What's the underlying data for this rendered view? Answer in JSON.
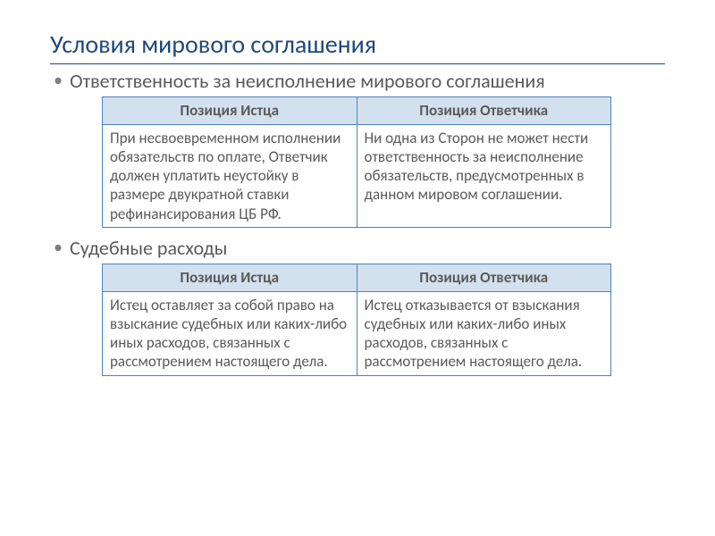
{
  "colors": {
    "title": "#1f497d",
    "title_rule": "#1f497d",
    "body_text": "#5a5a5a",
    "bullet": "#7f7f7f",
    "table_border": "#4f81bd",
    "header_bg": "#d3e0ee",
    "cell_bg": "#ffffff"
  },
  "title": "Условия мирового соглашения",
  "sections": [
    {
      "bullet": "Ответственность за неисполнение мирового соглашения",
      "table": {
        "headers": [
          "Позиция Истца",
          "Позиция Ответчика"
        ],
        "row": [
          "При несвоевременном исполнении обязательств по оплате, Ответчик должен уплатить неустойку в размере двукратной ставки рефинансирования ЦБ РФ.",
          "Ни одна из Сторон не может нести ответственность за неисполнение обязательств, предусмотренных в данном мировом соглашении."
        ]
      }
    },
    {
      "bullet": "Судебные расходы",
      "table": {
        "headers": [
          "Позиция Истца",
          "Позиция Ответчика"
        ],
        "row": [
          "Истец оставляет за собой право на взыскание судебных или каких-либо иных расходов, связанных с рассмотрением настоящего дела.",
          "Истец отказывается от взыскания судебных или каких-либо иных расходов, связанных с рассмотрением настоящего дела."
        ]
      }
    }
  ]
}
